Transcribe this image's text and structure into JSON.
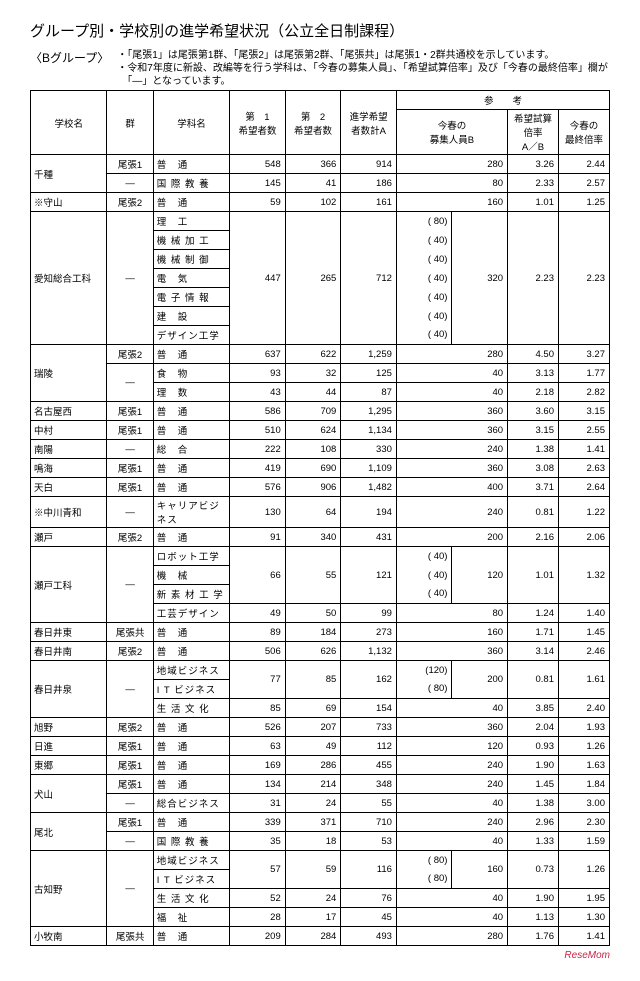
{
  "title": "グループ別・学校別の進学希望状況（公立全日制課程）",
  "groupLabel": "〈Bグループ〉",
  "note1": "・「尾張1」は尾張第1群、「尾張2」は尾張第2群、「尾張共」は尾張1・2群共通校を示しています。",
  "note2": "・令和7年度に新設、改編等を行う学科は、「今春の募集人員」、「希望試算倍率」及び「今春の最終倍率」欄が",
  "note3": "　「―」となっています。",
  "headers": {
    "school": "学校名",
    "gun": "群",
    "dept": "学科名",
    "n1": "第　1\n希望者数",
    "n2": "第　2\n希望者数",
    "sumA": "進学希望\n者数計A",
    "ref": "参　　考",
    "bosyu": "今春の\n募集人員B",
    "ratio": "希望試算\n倍率\nA／B",
    "final": "今春の\n最終倍率"
  },
  "footerBrand": "ReseMom",
  "rows": [
    {
      "school": "千種",
      "gun": "尾張1",
      "dept": "普　通",
      "n1": "548",
      "n2": "366",
      "a": "914",
      "b": "280",
      "r": "3.26",
      "f": "2.44",
      "schoolRowspan": 2
    },
    {
      "gun": "―",
      "dept": "国 際 教 養",
      "n1": "145",
      "n2": "41",
      "a": "186",
      "b": "80",
      "r": "2.33",
      "f": "2.57"
    },
    {
      "school": "※守山",
      "gun": "尾張2",
      "dept": "普　通",
      "n1": "59",
      "n2": "102",
      "a": "161",
      "b": "160",
      "r": "1.01",
      "f": "1.25"
    },
    {
      "school": "愛知総合工科",
      "gun": "―",
      "dept": "理　工",
      "schoolRowspan": 7,
      "gunRowspan": 7,
      "n1span": 7,
      "n1": "447",
      "n2": "265",
      "a": "712",
      "paren": "( 80)",
      "bSpan": 7,
      "b": "320",
      "r": "2.23",
      "f": "2.23",
      "brace": true
    },
    {
      "dept": "機 械 加 工",
      "paren": "( 40)"
    },
    {
      "dept": "機 械 制 御",
      "paren": "( 40)"
    },
    {
      "dept": "電　気",
      "paren": "( 40)"
    },
    {
      "dept": "電 子 情 報",
      "paren": "( 40)"
    },
    {
      "dept": "建　設",
      "paren": "( 40)"
    },
    {
      "dept": "デザイン工学",
      "paren": "( 40)"
    },
    {
      "school": "瑞陵",
      "gun": "尾張2",
      "dept": "普　通",
      "n1": "637",
      "n2": "622",
      "a": "1,259",
      "b": "280",
      "r": "4.50",
      "f": "3.27",
      "schoolRowspan": 3
    },
    {
      "gun": "―",
      "dept": "食　物",
      "n1": "93",
      "n2": "32",
      "a": "125",
      "b": "40",
      "r": "3.13",
      "f": "1.77",
      "gunRowspan": 2
    },
    {
      "dept": "理　数",
      "n1": "43",
      "n2": "44",
      "a": "87",
      "b": "40",
      "r": "2.18",
      "f": "2.82"
    },
    {
      "school": "名古屋西",
      "gun": "尾張1",
      "dept": "普　通",
      "n1": "586",
      "n2": "709",
      "a": "1,295",
      "b": "360",
      "r": "3.60",
      "f": "3.15"
    },
    {
      "school": "中村",
      "gun": "尾張1",
      "dept": "普　通",
      "n1": "510",
      "n2": "624",
      "a": "1,134",
      "b": "360",
      "r": "3.15",
      "f": "2.55"
    },
    {
      "school": "南陽",
      "gun": "―",
      "dept": "総　合",
      "n1": "222",
      "n2": "108",
      "a": "330",
      "b": "240",
      "r": "1.38",
      "f": "1.41"
    },
    {
      "school": "鳴海",
      "gun": "尾張1",
      "dept": "普　通",
      "n1": "419",
      "n2": "690",
      "a": "1,109",
      "b": "360",
      "r": "3.08",
      "f": "2.63"
    },
    {
      "school": "天白",
      "gun": "尾張1",
      "dept": "普　通",
      "n1": "576",
      "n2": "906",
      "a": "1,482",
      "b": "400",
      "r": "3.71",
      "f": "2.64"
    },
    {
      "school": "※中川青和",
      "gun": "―",
      "dept": "キャリアビジネス",
      "n1": "130",
      "n2": "64",
      "a": "194",
      "b": "240",
      "r": "0.81",
      "f": "1.22"
    },
    {
      "school": "瀬戸",
      "gun": "尾張2",
      "dept": "普　通",
      "n1": "91",
      "n2": "340",
      "a": "431",
      "b": "200",
      "r": "2.16",
      "f": "2.06"
    },
    {
      "school": "瀬戸工科",
      "gun": "―",
      "dept": "ロボット工学",
      "schoolRowspan": 4,
      "gunRowspan": 4,
      "n1span": 3,
      "n1": "66",
      "n2": "55",
      "a": "121",
      "paren": "( 40)",
      "bSpan": 3,
      "b": "120",
      "r": "1.01",
      "f": "1.32",
      "brace": true
    },
    {
      "dept": "機　械",
      "paren": "( 40)"
    },
    {
      "dept": "新 素 材 工 学",
      "paren": "( 40)"
    },
    {
      "dept": "工芸デザイン",
      "n1": "49",
      "n2": "50",
      "a": "99",
      "b": "80",
      "r": "1.24",
      "f": "1.40"
    },
    {
      "school": "春日井東",
      "gun": "尾張共",
      "dept": "普　通",
      "n1": "89",
      "n2": "184",
      "a": "273",
      "b": "160",
      "r": "1.71",
      "f": "1.45"
    },
    {
      "school": "春日井南",
      "gun": "尾張2",
      "dept": "普　通",
      "n1": "506",
      "n2": "626",
      "a": "1,132",
      "b": "360",
      "r": "3.14",
      "f": "2.46"
    },
    {
      "school": "春日井泉",
      "gun": "―",
      "dept": "地域ビジネス",
      "schoolRowspan": 3,
      "gunRowspan": 3,
      "n1span": 2,
      "n1": "77",
      "n2": "85",
      "a": "162",
      "paren": "(120)",
      "bSpan": 2,
      "b": "200",
      "r": "0.81",
      "f": "1.61",
      "brace": true
    },
    {
      "dept": "I T ビジネス",
      "paren": "( 80)"
    },
    {
      "dept": "生 活 文 化",
      "n1": "85",
      "n2": "69",
      "a": "154",
      "b": "40",
      "r": "3.85",
      "f": "2.40"
    },
    {
      "school": "旭野",
      "gun": "尾張2",
      "dept": "普　通",
      "n1": "526",
      "n2": "207",
      "a": "733",
      "b": "360",
      "r": "2.04",
      "f": "1.93"
    },
    {
      "school": "日進",
      "gun": "尾張1",
      "dept": "普　通",
      "n1": "63",
      "n2": "49",
      "a": "112",
      "b": "120",
      "r": "0.93",
      "f": "1.26"
    },
    {
      "school": "東郷",
      "gun": "尾張1",
      "dept": "普　通",
      "n1": "169",
      "n2": "286",
      "a": "455",
      "b": "240",
      "r": "1.90",
      "f": "1.63"
    },
    {
      "school": "犬山",
      "gun": "尾張1",
      "dept": "普　通",
      "n1": "134",
      "n2": "214",
      "a": "348",
      "b": "240",
      "r": "1.45",
      "f": "1.84",
      "schoolRowspan": 2
    },
    {
      "gun": "―",
      "dept": "総合ビジネス",
      "n1": "31",
      "n2": "24",
      "a": "55",
      "b": "40",
      "r": "1.38",
      "f": "3.00"
    },
    {
      "school": "尾北",
      "gun": "尾張1",
      "dept": "普　通",
      "n1": "339",
      "n2": "371",
      "a": "710",
      "b": "240",
      "r": "2.96",
      "f": "2.30",
      "schoolRowspan": 2
    },
    {
      "gun": "―",
      "dept": "国 際 教 養",
      "n1": "35",
      "n2": "18",
      "a": "53",
      "b": "40",
      "r": "1.33",
      "f": "1.59"
    },
    {
      "school": "古知野",
      "gun": "―",
      "dept": "地域ビジネス",
      "schoolRowspan": 4,
      "gunRowspan": 4,
      "n1span": 2,
      "n1": "57",
      "n2": "59",
      "a": "116",
      "paren": "( 80)",
      "bSpan": 2,
      "b": "160",
      "r": "0.73",
      "f": "1.26",
      "brace": true
    },
    {
      "dept": "I T ビジネス",
      "paren": "( 80)"
    },
    {
      "dept": "生 活 文 化",
      "n1": "52",
      "n2": "24",
      "a": "76",
      "b": "40",
      "r": "1.90",
      "f": "1.95"
    },
    {
      "dept": "福　祉",
      "n1": "28",
      "n2": "17",
      "a": "45",
      "b": "40",
      "r": "1.13",
      "f": "1.30"
    },
    {
      "school": "小牧南",
      "gun": "尾張共",
      "dept": "普　通",
      "n1": "209",
      "n2": "284",
      "a": "493",
      "b": "280",
      "r": "1.76",
      "f": "1.41"
    }
  ]
}
